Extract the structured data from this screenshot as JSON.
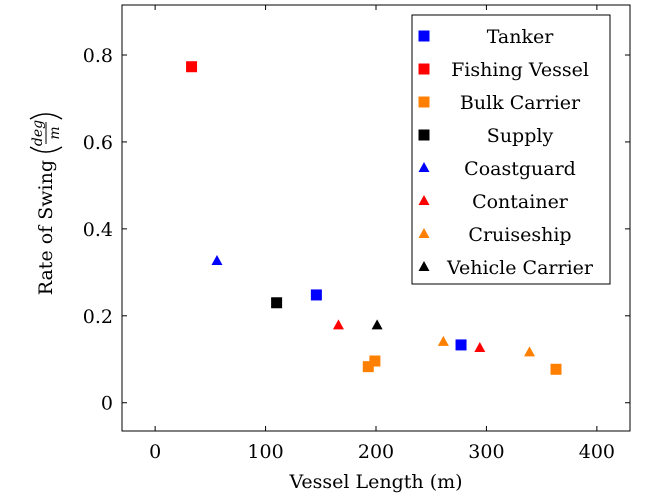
{
  "chart_data": {
    "type": "scatter",
    "xlabel": "Vessel Length (m)",
    "ylabel": "Rate of Swing",
    "ylabel_unit_num": "deg",
    "ylabel_unit_den": "m",
    "xlim": [
      -30,
      430
    ],
    "ylim": [
      -0.065,
      0.915
    ],
    "xticks": [
      0,
      100,
      200,
      300,
      400
    ],
    "yticks": [
      0,
      0.2,
      0.4,
      0.6,
      0.8
    ],
    "xtick_labels": [
      "0",
      "100",
      "200",
      "300",
      "400"
    ],
    "ytick_labels": [
      "0",
      "0.2",
      "0.4",
      "0.6",
      "0.8"
    ],
    "legend_position": "top-right",
    "series": [
      {
        "name": "Tanker",
        "marker": "square",
        "color": "#0000ff",
        "points": [
          {
            "x": 146,
            "y": 0.248
          },
          {
            "x": 277,
            "y": 0.133
          }
        ]
      },
      {
        "name": "Fishing Vessel",
        "marker": "square",
        "color": "#ff0000",
        "points": [
          {
            "x": 33,
            "y": 0.773
          }
        ]
      },
      {
        "name": "Bulk Carrier",
        "marker": "square",
        "color": "#ff8000",
        "points": [
          {
            "x": 193,
            "y": 0.083
          },
          {
            "x": 199,
            "y": 0.096
          },
          {
            "x": 363,
            "y": 0.077
          }
        ]
      },
      {
        "name": "Supply",
        "marker": "square",
        "color": "#000000",
        "points": [
          {
            "x": 110,
            "y": 0.23
          }
        ]
      },
      {
        "name": "Coastguard",
        "marker": "triangle",
        "color": "#0000ff",
        "points": [
          {
            "x": 56,
            "y": 0.326
          }
        ]
      },
      {
        "name": "Container",
        "marker": "triangle",
        "color": "#ff0000",
        "points": [
          {
            "x": 166,
            "y": 0.178
          },
          {
            "x": 294,
            "y": 0.126
          }
        ]
      },
      {
        "name": "Cruiseship",
        "marker": "triangle",
        "color": "#ff8000",
        "points": [
          {
            "x": 261,
            "y": 0.14
          },
          {
            "x": 339,
            "y": 0.116
          }
        ]
      },
      {
        "name": "Vehicle Carrier",
        "marker": "triangle",
        "color": "#000000",
        "points": [
          {
            "x": 201,
            "y": 0.178
          }
        ]
      }
    ]
  }
}
